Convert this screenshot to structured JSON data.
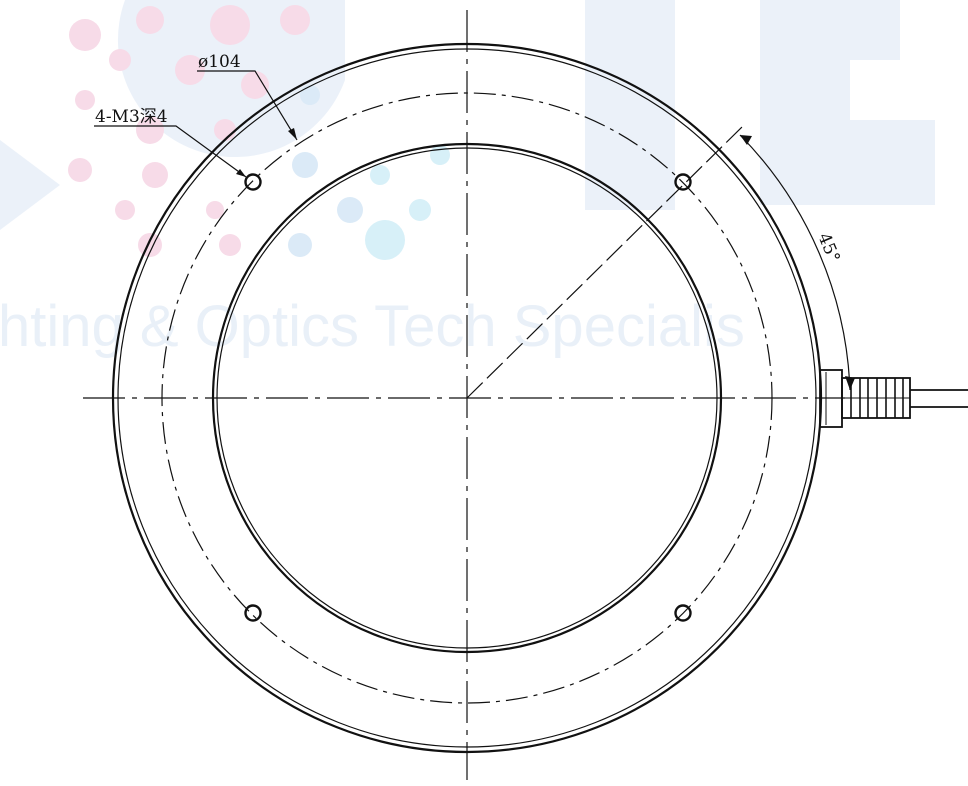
{
  "labels": {
    "diameter": "ø104",
    "holes": "4-M3深4",
    "angle": "45°"
  },
  "watermark": {
    "text": "hting & Optics Tech Specialis"
  },
  "colors": {
    "line": "#111111",
    "watermark_text": "#e9f0f8",
    "watermark_pink": "#f7dbe8",
    "watermark_blue": "#dbeaf7",
    "watermark_cyan": "#d7f0f8"
  }
}
